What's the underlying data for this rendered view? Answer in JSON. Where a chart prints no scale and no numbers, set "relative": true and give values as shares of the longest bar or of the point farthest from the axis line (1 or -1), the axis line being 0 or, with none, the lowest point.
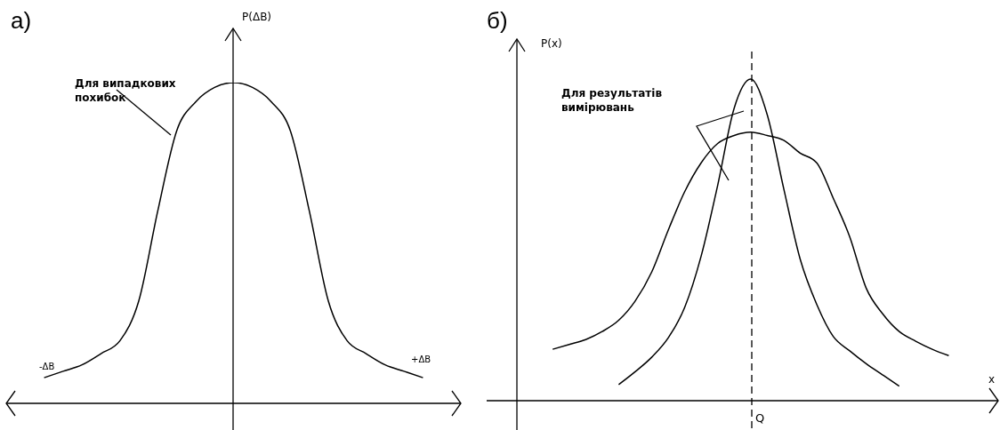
{
  "chart_data": [
    {
      "type": "line",
      "title": "а)",
      "ylabel": "P(ΔB)",
      "relative": true,
      "marker": "none",
      "line_style": "solid",
      "categories": [
        null,
        null,
        null,
        null,
        null,
        null,
        null,
        null,
        null,
        null,
        null,
        null,
        null,
        null,
        null,
        null,
        null,
        null,
        null,
        null,
        null,
        null,
        null,
        null,
        null
      ],
      "series": [
        {
          "color": "#000000",
          "values": [
            null,
            null,
            0.08,
            0.1,
            0.12,
            0.155,
            0.195,
            0.32,
            0.6,
            0.85,
            0.94,
            0.985,
            1,
            0.985,
            0.94,
            0.85,
            0.6,
            0.32,
            0.195,
            0.155,
            0.12,
            0.1,
            0.08,
            null,
            null
          ]
        }
      ],
      "annotations": [
        "Для випадкових похибок",
        "-ΔB",
        "+ΔB"
      ]
    },
    {
      "type": "line",
      "title": "б)",
      "ylabel": "P(x)",
      "xlabel": "x",
      "relative": true,
      "marker": "none",
      "line_style": "solid",
      "categories": [
        null,
        null,
        null,
        null,
        null,
        null,
        null,
        null,
        null,
        null,
        null,
        null,
        null,
        null,
        null,
        null,
        null,
        null,
        null,
        null,
        null,
        null,
        null,
        null,
        null,
        null,
        null,
        null,
        null,
        null,
        null,
        null
      ],
      "series": [
        {
          "color": "#000000",
          "values": [
            null,
            null,
            null,
            null,
            0.16,
            0.175,
            0.19,
            0.215,
            0.25,
            0.31,
            0.4,
            0.53,
            0.65,
            0.74,
            0.8,
            0.825,
            0.835,
            0.825,
            0.81,
            0.77,
            0.74,
            0.63,
            0.51,
            0.35,
            0.27,
            0.215,
            0.185,
            0.16,
            0.14,
            null,
            null,
            null
          ]
        },
        {
          "color": "#000000",
          "values": [
            null,
            null,
            null,
            null,
            null,
            null,
            null,
            null,
            0.05,
            0.09,
            0.135,
            0.195,
            0.29,
            0.45,
            0.67,
            0.91,
            1,
            0.89,
            0.66,
            0.44,
            0.3,
            0.2,
            0.155,
            0.115,
            0.08,
            0.045,
            null,
            null,
            null,
            null,
            null,
            null
          ]
        }
      ],
      "annotations": [
        "Для результатів вимірювань",
        "Q"
      ]
    }
  ]
}
